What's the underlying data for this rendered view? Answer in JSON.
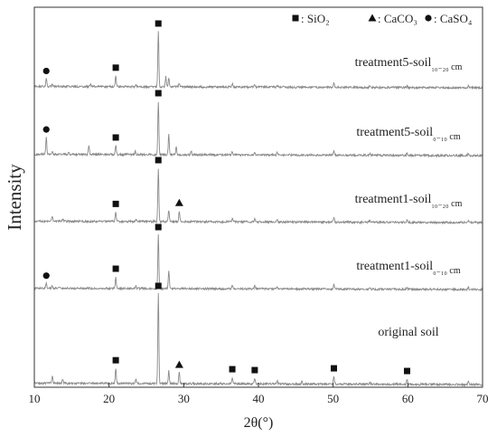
{
  "chart_data": {
    "type": "line",
    "title": "",
    "xlabel": "2θ(°)",
    "ylabel": "Intensity",
    "xlim": [
      10,
      70
    ],
    "x_ticks": [
      "10",
      "20",
      "30",
      "40",
      "50",
      "60",
      "70"
    ],
    "y_ticks": false,
    "grid": false,
    "legend": {
      "placement": "top-right",
      "entries": [
        {
          "marker": "square",
          "label": ": SiO₂"
        },
        {
          "marker": "triangle",
          "label": ": CaCO₃"
        },
        {
          "marker": "circle",
          "label": ": CaSO₄"
        }
      ]
    },
    "line_color": "#8a8a8a",
    "marker_color": "#111111",
    "series": [
      {
        "name": "treatment5-soil₁₀₋₂₀ cm",
        "peaks": [
          [
            11.6,
            0.14
          ],
          [
            12.4,
            0.05
          ],
          [
            17.5,
            0.04
          ],
          [
            20.9,
            0.2
          ],
          [
            23.6,
            0.04
          ],
          [
            26.6,
            1.0
          ],
          [
            27.6,
            0.18
          ],
          [
            28.0,
            0.16
          ],
          [
            29.4,
            0.06
          ],
          [
            36.5,
            0.07
          ],
          [
            39.5,
            0.04
          ],
          [
            40.3,
            0.03
          ],
          [
            42.5,
            0.03
          ],
          [
            50.1,
            0.08
          ],
          [
            54.9,
            0.03
          ],
          [
            59.9,
            0.03
          ],
          [
            68.1,
            0.04
          ]
        ],
        "markers": [
          {
            "x": 11.6,
            "marker": "circle"
          },
          {
            "x": 20.9,
            "marker": "square"
          },
          {
            "x": 26.6,
            "marker": "square"
          }
        ]
      },
      {
        "name": "treatment5-soil₀₋₁₀ cm",
        "peaks": [
          [
            11.6,
            0.32
          ],
          [
            12.4,
            0.06
          ],
          [
            14.6,
            0.05
          ],
          [
            17.3,
            0.16
          ],
          [
            20.9,
            0.17
          ],
          [
            23.5,
            0.06
          ],
          [
            26.6,
            1.0
          ],
          [
            28.0,
            0.38
          ],
          [
            29.0,
            0.15
          ],
          [
            31.0,
            0.06
          ],
          [
            36.5,
            0.06
          ],
          [
            39.5,
            0.05
          ],
          [
            42.5,
            0.04
          ],
          [
            50.1,
            0.08
          ],
          [
            54.9,
            0.03
          ],
          [
            59.9,
            0.04
          ],
          [
            68.1,
            0.04
          ]
        ],
        "markers": [
          {
            "x": 11.6,
            "marker": "circle"
          },
          {
            "x": 20.9,
            "marker": "square"
          },
          {
            "x": 26.6,
            "marker": "square"
          }
        ]
      },
      {
        "name": "treatment1-soil₁₀₋₂₀ cm",
        "peaks": [
          [
            12.4,
            0.08
          ],
          [
            13.8,
            0.05
          ],
          [
            20.9,
            0.18
          ],
          [
            23.6,
            0.05
          ],
          [
            26.6,
            1.0
          ],
          [
            28.0,
            0.22
          ],
          [
            29.4,
            0.2
          ],
          [
            36.5,
            0.07
          ],
          [
            39.5,
            0.05
          ],
          [
            42.5,
            0.04
          ],
          [
            50.1,
            0.09
          ],
          [
            54.9,
            0.03
          ],
          [
            59.9,
            0.04
          ],
          [
            68.1,
            0.04
          ]
        ],
        "markers": [
          {
            "x": 20.9,
            "marker": "square"
          },
          {
            "x": 26.6,
            "marker": "square"
          },
          {
            "x": 29.4,
            "marker": "triangle"
          }
        ]
      },
      {
        "name": "treatment1-soil₀₋₁₀ cm",
        "peaks": [
          [
            11.6,
            0.09
          ],
          [
            12.4,
            0.05
          ],
          [
            20.9,
            0.22
          ],
          [
            23.6,
            0.05
          ],
          [
            26.6,
            1.0
          ],
          [
            28.0,
            0.33
          ],
          [
            36.5,
            0.07
          ],
          [
            39.5,
            0.05
          ],
          [
            42.5,
            0.04
          ],
          [
            50.1,
            0.08
          ],
          [
            54.9,
            0.03
          ],
          [
            59.9,
            0.04
          ],
          [
            68.1,
            0.04
          ]
        ],
        "markers": [
          {
            "x": 11.6,
            "marker": "circle"
          },
          {
            "x": 20.9,
            "marker": "square"
          },
          {
            "x": 26.6,
            "marker": "square"
          }
        ]
      },
      {
        "name": "original soil",
        "peaks": [
          [
            12.4,
            0.08
          ],
          [
            13.8,
            0.04
          ],
          [
            20.9,
            0.17
          ],
          [
            23.6,
            0.05
          ],
          [
            26.6,
            1.0
          ],
          [
            28.0,
            0.14
          ],
          [
            29.4,
            0.12
          ],
          [
            36.5,
            0.07
          ],
          [
            39.5,
            0.06
          ],
          [
            42.5,
            0.04
          ],
          [
            45.8,
            0.03
          ],
          [
            50.1,
            0.08
          ],
          [
            54.9,
            0.03
          ],
          [
            59.9,
            0.05
          ],
          [
            68.1,
            0.04
          ]
        ],
        "markers": [
          {
            "x": 20.9,
            "marker": "square"
          },
          {
            "x": 26.6,
            "marker": "square"
          },
          {
            "x": 29.4,
            "marker": "triangle"
          },
          {
            "x": 36.5,
            "marker": "square"
          },
          {
            "x": 39.5,
            "marker": "square"
          },
          {
            "x": 50.1,
            "marker": "square"
          },
          {
            "x": 59.9,
            "marker": "square"
          }
        ]
      }
    ]
  }
}
